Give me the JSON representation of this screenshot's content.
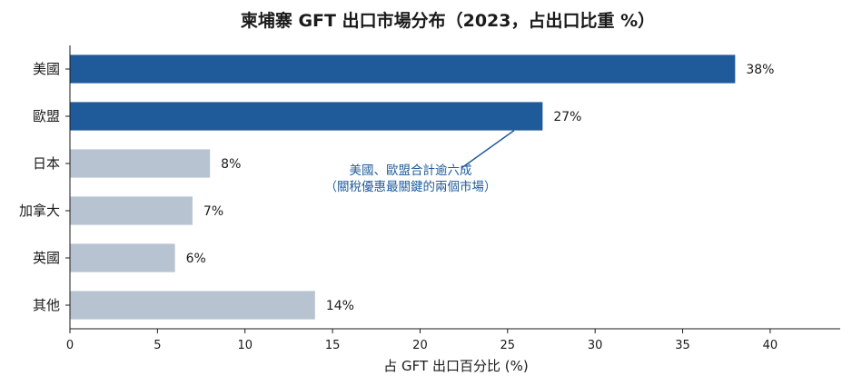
{
  "chart_data": {
    "type": "bar",
    "orientation": "horizontal",
    "title": "柬埔寨 GFT 出口市場分布（2023，占出口比重 %）",
    "xlabel": "占 GFT 出口百分比 (%)",
    "ylabel": "",
    "categories": [
      "美國",
      "歐盟",
      "日本",
      "加拿大",
      "英國",
      "其他"
    ],
    "values": [
      38,
      27,
      8,
      7,
      6,
      14
    ],
    "value_labels": [
      "38%",
      "27%",
      "8%",
      "7%",
      "6%",
      "14%"
    ],
    "xlim": [
      0,
      44
    ],
    "xticks": [
      0,
      5,
      10,
      15,
      20,
      25,
      30,
      35,
      40
    ],
    "grid": false,
    "highlight_categories": [
      "美國",
      "歐盟"
    ],
    "colors": {
      "highlight": "#1f5b9a",
      "other": "#b8c3d1",
      "annotation": "#1f5b9a"
    },
    "annotation": {
      "lines": [
        "美國、歐盟合計逾六成",
        "（關稅優惠最關鍵的兩個市場）"
      ],
      "target_category": "歐盟"
    }
  }
}
